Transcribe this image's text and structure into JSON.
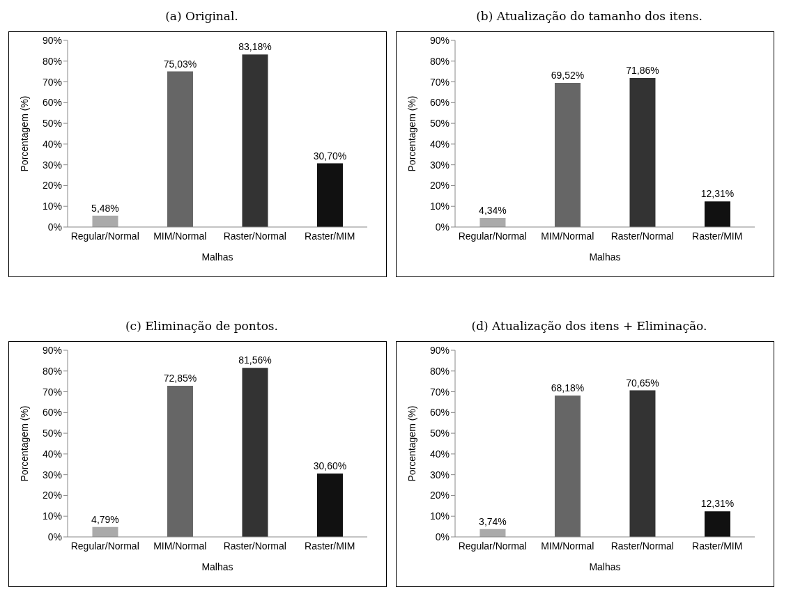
{
  "chart_data": [
    {
      "type": "bar",
      "title": "(a) Original.",
      "xlabel": "Malhas",
      "ylabel": "Porcentagem (%)",
      "categories": [
        "Regular/Normal",
        "MIM/Normal",
        "Raster/Normal",
        "Raster/MIM"
      ],
      "values": [
        5.48,
        75.03,
        83.18,
        30.7
      ],
      "value_labels": [
        "5,48%",
        "75,03%",
        "83,18%",
        "30,70%"
      ],
      "colors": [
        "#aaaaaa",
        "#666666",
        "#333333",
        "#111111"
      ],
      "ylim": [
        0,
        90
      ],
      "yticks": [
        {
          "value": 0,
          "label": "0%"
        },
        {
          "value": 10,
          "label": "10%"
        },
        {
          "value": 20,
          "label": "20%"
        },
        {
          "value": 30,
          "label": "30%"
        },
        {
          "value": 40,
          "label": "40%"
        },
        {
          "value": 50,
          "label": "50%"
        },
        {
          "value": 60,
          "label": "60%"
        },
        {
          "value": 70,
          "label": "70%"
        },
        {
          "value": 80,
          "label": "80%"
        },
        {
          "value": 90,
          "label": "90%"
        }
      ]
    },
    {
      "type": "bar",
      "title": "(b) Atualização do tamanho dos itens.",
      "xlabel": "Malhas",
      "ylabel": "Porcentagem (%)",
      "categories": [
        "Regular/Normal",
        "MIM/Normal",
        "Raster/Normal",
        "Raster/MIM"
      ],
      "values": [
        4.34,
        69.52,
        71.86,
        12.31
      ],
      "value_labels": [
        "4,34%",
        "69,52%",
        "71,86%",
        "12,31%"
      ],
      "colors": [
        "#aaaaaa",
        "#666666",
        "#333333",
        "#111111"
      ],
      "ylim": [
        0,
        90
      ],
      "yticks": [
        {
          "value": 0,
          "label": "0%"
        },
        {
          "value": 10,
          "label": "10%"
        },
        {
          "value": 20,
          "label": "20%"
        },
        {
          "value": 30,
          "label": "30%"
        },
        {
          "value": 40,
          "label": "40%"
        },
        {
          "value": 50,
          "label": "50%"
        },
        {
          "value": 60,
          "label": "60%"
        },
        {
          "value": 70,
          "label": "70%"
        },
        {
          "value": 80,
          "label": "80%"
        },
        {
          "value": 90,
          "label": "90%"
        }
      ]
    },
    {
      "type": "bar",
      "title": "(c) Eliminação de pontos.",
      "xlabel": "Malhas",
      "ylabel": "Porcentagem (%)",
      "categories": [
        "Regular/Normal",
        "MIM/Normal",
        "Raster/Normal",
        "Raster/MIM"
      ],
      "values": [
        4.79,
        72.85,
        81.56,
        30.6
      ],
      "value_labels": [
        "4,79%",
        "72,85%",
        "81,56%",
        "30,60%"
      ],
      "colors": [
        "#aaaaaa",
        "#666666",
        "#333333",
        "#111111"
      ],
      "ylim": [
        0,
        90
      ],
      "yticks": [
        {
          "value": 0,
          "label": "0%"
        },
        {
          "value": 10,
          "label": "10%"
        },
        {
          "value": 20,
          "label": "20%"
        },
        {
          "value": 30,
          "label": "30%"
        },
        {
          "value": 40,
          "label": "40%"
        },
        {
          "value": 50,
          "label": "50%"
        },
        {
          "value": 60,
          "label": "60%"
        },
        {
          "value": 70,
          "label": "70%"
        },
        {
          "value": 80,
          "label": "80%"
        },
        {
          "value": 90,
          "label": "90%"
        }
      ]
    },
    {
      "type": "bar",
      "title": "(d) Atualização dos itens + Eliminação.",
      "xlabel": "Malhas",
      "ylabel": "Porcentagem (%)",
      "categories": [
        "Regular/Normal",
        "MIM/Normal",
        "Raster/Normal",
        "Raster/MIM"
      ],
      "values": [
        3.74,
        68.18,
        70.65,
        12.31
      ],
      "value_labels": [
        "3,74%",
        "68,18%",
        "70,65%",
        "12,31%"
      ],
      "colors": [
        "#aaaaaa",
        "#666666",
        "#333333",
        "#111111"
      ],
      "ylim": [
        0,
        90
      ],
      "yticks": [
        {
          "value": 0,
          "label": "0%"
        },
        {
          "value": 10,
          "label": "10%"
        },
        {
          "value": 20,
          "label": "20%"
        },
        {
          "value": 30,
          "label": "30%"
        },
        {
          "value": 40,
          "label": "40%"
        },
        {
          "value": 50,
          "label": "50%"
        },
        {
          "value": 60,
          "label": "60%"
        },
        {
          "value": 70,
          "label": "70%"
        },
        {
          "value": 80,
          "label": "80%"
        },
        {
          "value": 90,
          "label": "90%"
        }
      ]
    }
  ]
}
